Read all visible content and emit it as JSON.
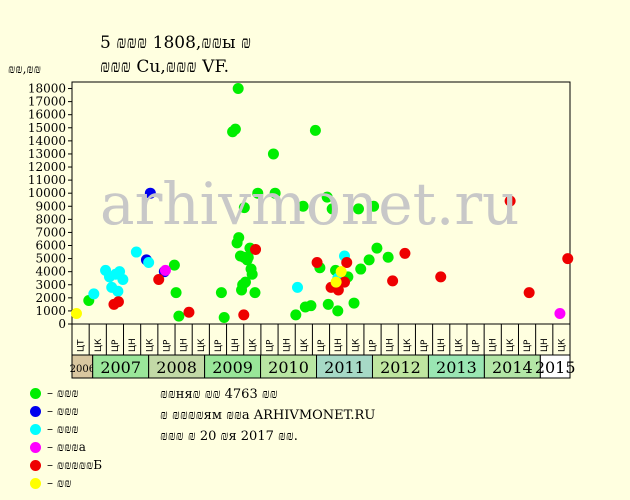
{
  "title_line1": "5 ₪₪₪ 1808,₪₪ы ₪",
  "title_line2": "₪₪₪ Cu,₪₪₪ VF.",
  "watermark": "arhivmonet.ru",
  "legend": [
    {
      "label": "– ₪₪₪",
      "color": "#00ee00"
    },
    {
      "label": "– ₪₪₪",
      "color": "#0000ee"
    },
    {
      "label": "– ₪₪₪",
      "color": "#00ffff"
    },
    {
      "label": "– ₪₪₪а",
      "color": "#ff00ff"
    },
    {
      "label": "– ₪₪₪₪₪Б",
      "color": "#ee0000"
    },
    {
      "label": "– ₪₪",
      "color": "#ffff00"
    }
  ],
  "notes": [
    "₪₪ня₪ ₪₪ 4763 ₪₪",
    "₪ ₪₪₪₪ям ₪₪а ARHIVMONET.RU",
    "₪₪₪ ₪ 20 ₪я 2017 ₪₪."
  ],
  "chart_data": {
    "type": "scatter",
    "title": "5 ₪₪₪ 1808,₪₪ы ₪ / ₪₪₪ Cu,₪₪₪ VF.",
    "ylabel": "₪₪,₪₪",
    "xlabel": "",
    "ylim": [
      0,
      18500
    ],
    "yticks": [
      0,
      1000,
      2000,
      3000,
      4000,
      5000,
      6000,
      7000,
      8000,
      9000,
      10000,
      11000,
      12000,
      13000,
      14000,
      15000,
      16000,
      17000,
      18000
    ],
    "xlim": [
      2006.55,
      2015.45
    ],
    "x_sublabels": [
      "ЦТ",
      "ЦК",
      "ЦР",
      "ЦН",
      "ЦК",
      "ЦР",
      "ЦН",
      "ЦК",
      "ЦР",
      "ЦН",
      "ЦК",
      "ЦР",
      "ЦН",
      "ЦК",
      "ЦР",
      "ЦН",
      "ЦК",
      "ЦР",
      "ЦН",
      "ЦК",
      "ЦР",
      "ЦН",
      "ЦК",
      "ЦР",
      "ЦН",
      "ЦК",
      "ЦР",
      "ЦН",
      "ЦК"
    ],
    "years": [
      {
        "label": "2006",
        "from": 2006.55,
        "to": 2006.92,
        "color": "#d9c7a0",
        "small": true
      },
      {
        "label": "2007",
        "from": 2006.92,
        "to": 2007.92,
        "color": "#9ae69a"
      },
      {
        "label": "2008",
        "from": 2007.92,
        "to": 2008.92,
        "color": "#c2d9a6"
      },
      {
        "label": "2009",
        "from": 2008.92,
        "to": 2009.92,
        "color": "#99e699"
      },
      {
        "label": "2010",
        "from": 2009.92,
        "to": 2010.92,
        "color": "#b9e6a3"
      },
      {
        "label": "2011",
        "from": 2010.92,
        "to": 2011.92,
        "color": "#a6d9c6"
      },
      {
        "label": "2012",
        "from": 2011.92,
        "to": 2012.92,
        "color": "#bfe6a0"
      },
      {
        "label": "2013",
        "from": 2012.92,
        "to": 2013.92,
        "color": "#9ae6b3"
      },
      {
        "label": "2014",
        "from": 2013.92,
        "to": 2014.92,
        "color": "#b3e6a6"
      },
      {
        "label": "2015",
        "from": 2014.92,
        "to": 2015.45,
        "color": "#ffffff"
      }
    ],
    "series": [
      {
        "name": "– ₪₪₪",
        "color": "#00ee00",
        "points": [
          [
            2006.85,
            1800
          ],
          [
            2008.38,
            4500
          ],
          [
            2008.41,
            2400
          ],
          [
            2008.46,
            600
          ],
          [
            2009.22,
            2400
          ],
          [
            2009.27,
            500
          ],
          [
            2009.42,
            14700
          ],
          [
            2009.47,
            14900
          ],
          [
            2009.52,
            18000
          ],
          [
            2009.5,
            6200
          ],
          [
            2009.53,
            6600
          ],
          [
            2009.56,
            5200
          ],
          [
            2009.58,
            2600
          ],
          [
            2009.6,
            3000
          ],
          [
            2009.62,
            5100
          ],
          [
            2009.63,
            8900
          ],
          [
            2009.65,
            3200
          ],
          [
            2009.68,
            4900
          ],
          [
            2009.7,
            5100
          ],
          [
            2009.73,
            5800
          ],
          [
            2009.75,
            4200
          ],
          [
            2009.77,
            3800
          ],
          [
            2009.82,
            2400
          ],
          [
            2009.87,
            10000
          ],
          [
            2010.15,
            13000
          ],
          [
            2010.18,
            10000
          ],
          [
            2010.55,
            700
          ],
          [
            2010.68,
            9000
          ],
          [
            2010.72,
            1300
          ],
          [
            2010.82,
            1400
          ],
          [
            2010.9,
            14800
          ],
          [
            2010.98,
            4300
          ],
          [
            2011.11,
            9700
          ],
          [
            2011.13,
            1500
          ],
          [
            2011.2,
            8800
          ],
          [
            2011.26,
            4100
          ],
          [
            2011.3,
            1000
          ],
          [
            2011.32,
            3800
          ],
          [
            2011.48,
            3600
          ],
          [
            2011.59,
            1600
          ],
          [
            2011.67,
            8800
          ],
          [
            2011.71,
            4200
          ],
          [
            2011.86,
            4900
          ],
          [
            2011.94,
            9000
          ],
          [
            2012.0,
            5800
          ],
          [
            2012.2,
            5100
          ]
        ]
      },
      {
        "name": "– ₪₪₪",
        "color": "#0000ee",
        "points": [
          [
            2007.88,
            4900
          ],
          [
            2007.95,
            10000
          ],
          [
            2008.2,
            4000
          ]
        ]
      },
      {
        "name": "– ₪₪₪",
        "color": "#00ffff",
        "points": [
          [
            2006.94,
            2300
          ],
          [
            2007.15,
            4100
          ],
          [
            2007.22,
            3600
          ],
          [
            2007.26,
            2800
          ],
          [
            2007.33,
            3800
          ],
          [
            2007.37,
            2500
          ],
          [
            2007.4,
            4000
          ],
          [
            2007.46,
            3400
          ],
          [
            2007.7,
            5500
          ],
          [
            2007.92,
            4700
          ],
          [
            2010.58,
            2800
          ],
          [
            2011.3,
            3500
          ],
          [
            2011.42,
            5200
          ]
        ]
      },
      {
        "name": "– ₪₪₪а",
        "color": "#ff00ff",
        "points": [
          [
            2008.22,
            4100
          ],
          [
            2015.27,
            800
          ]
        ]
      },
      {
        "name": "– ₪₪₪₪₪Б",
        "color": "#ee0000",
        "points": [
          [
            2007.3,
            1500
          ],
          [
            2007.38,
            1700
          ],
          [
            2008.1,
            3400
          ],
          [
            2008.64,
            900
          ],
          [
            2009.62,
            700
          ],
          [
            2009.83,
            5700
          ],
          [
            2010.93,
            4700
          ],
          [
            2011.18,
            2800
          ],
          [
            2011.31,
            2600
          ],
          [
            2011.42,
            3200
          ],
          [
            2011.46,
            4700
          ],
          [
            2012.28,
            3300
          ],
          [
            2012.5,
            5400
          ],
          [
            2013.14,
            3600
          ],
          [
            2014.38,
            9400
          ],
          [
            2014.72,
            2400
          ],
          [
            2015.41,
            5000
          ]
        ]
      },
      {
        "name": "– ₪₪",
        "color": "#ffff00",
        "points": [
          [
            2006.63,
            800
          ],
          [
            2011.27,
            3200
          ],
          [
            2011.36,
            4000
          ]
        ]
      }
    ]
  }
}
